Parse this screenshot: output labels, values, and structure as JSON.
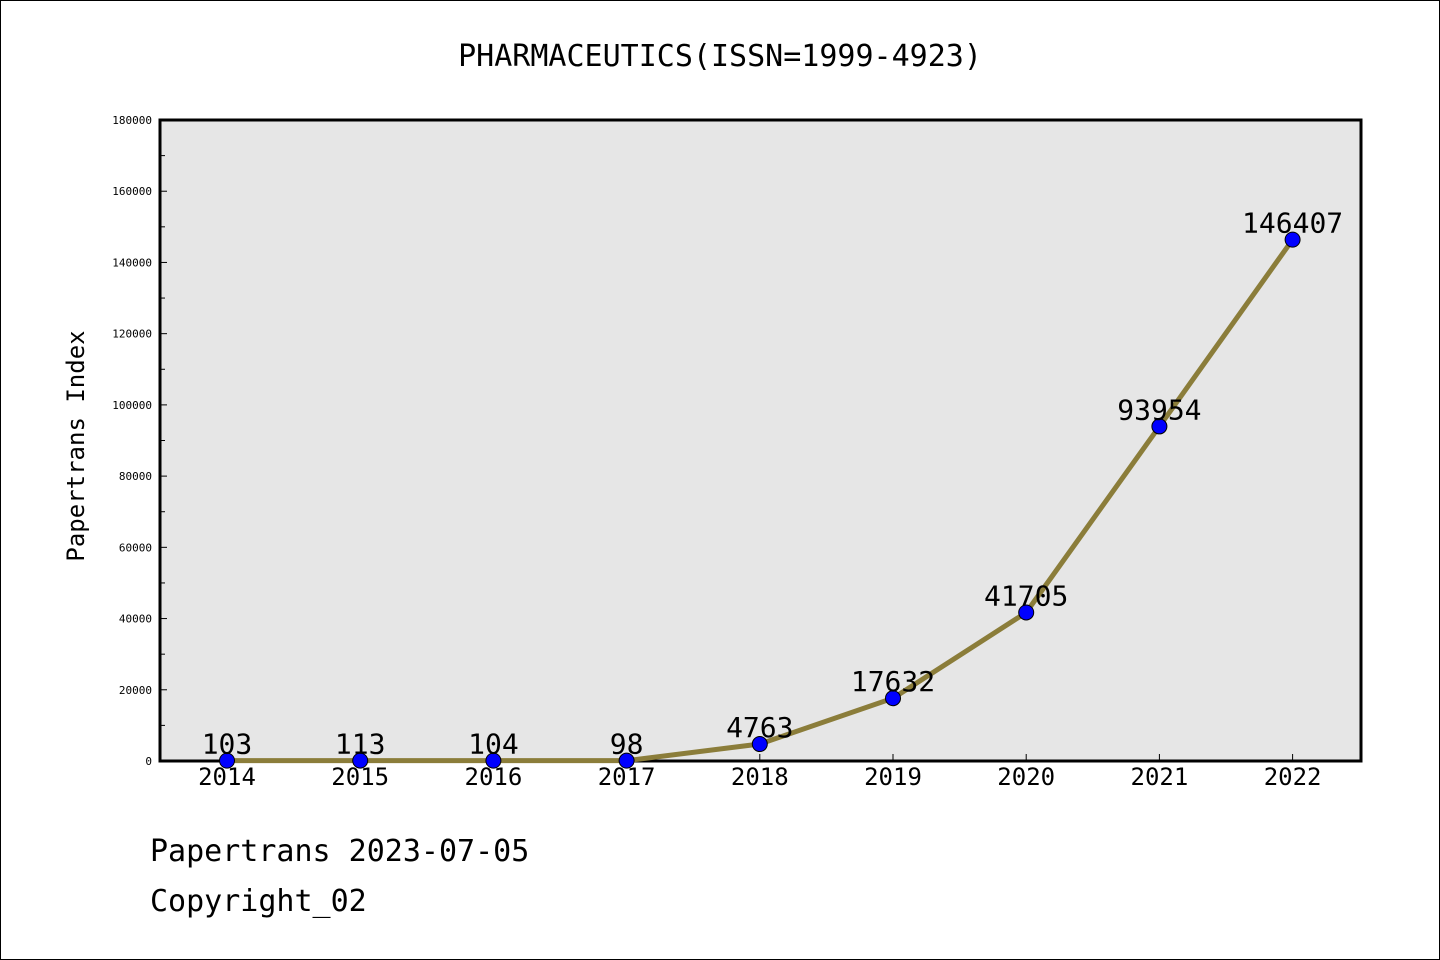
{
  "chart_data": {
    "type": "line",
    "title": "PHARMACEUTICS(ISSN=1999-4923)",
    "ylabel": "Papertrans Index",
    "xlabel": "",
    "categories": [
      "2014",
      "2015",
      "2016",
      "2017",
      "2018",
      "2019",
      "2020",
      "2021",
      "2022"
    ],
    "values": [
      103,
      113,
      104,
      98,
      4763,
      17632,
      41705,
      93954,
      146407
    ],
    "data_labels": [
      "103",
      "113",
      "104",
      "98",
      "4763",
      "17632",
      "41705",
      "93954",
      "146407"
    ],
    "ylim": [
      0,
      180000
    ],
    "yticks": [
      0,
      20000,
      40000,
      60000,
      80000,
      100000,
      120000,
      140000,
      160000,
      180000
    ],
    "ytick_labels": [
      "0",
      "20000",
      "40000",
      "60000",
      "80000",
      "100000",
      "120000",
      "140000",
      "160000",
      "180000"
    ],
    "grid": false,
    "colors": {
      "line": "#8b7d3a",
      "marker": "#0000ff",
      "plot_background": "#e6e6e6"
    }
  },
  "footer": {
    "line1": "Papertrans 2023-07-05",
    "line2": "Copyright_02"
  }
}
